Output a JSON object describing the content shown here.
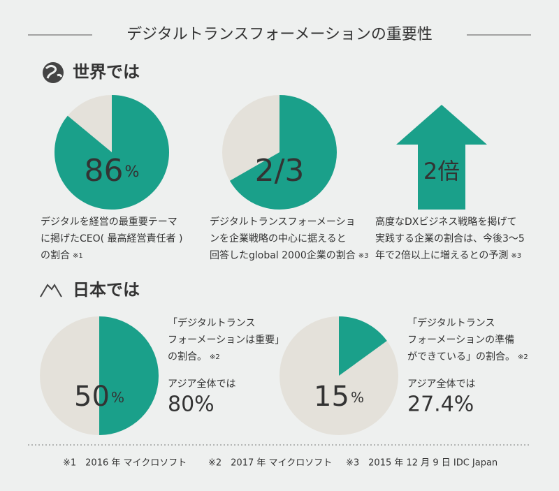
{
  "title": "デジタルトランスフォーメーションの重要性",
  "world": {
    "heading": "世界では",
    "items": [
      {
        "kind": "pie",
        "value": 86,
        "big": "86",
        "unit": "%",
        "caption": [
          "デジタルを経営の最重要テーマ",
          "に掲げたCEO( 最高経営責任者 )",
          "の割合"
        ],
        "note": "※1"
      },
      {
        "kind": "pie",
        "value": 66.7,
        "big": "2/3",
        "caption": [
          "デジタルトランスフォーメーショ",
          "ンを企業戦略の中心に据えると",
          "回答したglobal 2000企業の割合"
        ],
        "note": "※3"
      },
      {
        "kind": "arrow",
        "big": "2倍",
        "caption": [
          "高度なDXビジネス戦略を掲げて",
          "実践する企業の割合は、今後3～5",
          "年で2倍以上に増えるとの予測"
        ],
        "note": "※3"
      }
    ]
  },
  "japan": {
    "heading": "日本では",
    "items": [
      {
        "value": 50,
        "big": "50",
        "unit": "%",
        "caption": [
          "「デジタルトランス",
          "フォーメーションは重要」",
          "の割合。"
        ],
        "note": "※2",
        "asia_label": "アジア全体では",
        "asia_value": "80%"
      },
      {
        "value": 15,
        "big": "15",
        "unit": "%",
        "caption": [
          "「デジタルトランス",
          "フォーメーションの準備",
          "ができている」の割合。"
        ],
        "note": "※2",
        "asia_label": "アジア全体では",
        "asia_value": "27.4%"
      }
    ]
  },
  "footnotes": [
    "※1　2016 年 マイクロソフト",
    "※2　2017 年 マイクロソフト",
    "※3　2015 年 12 月 9 日 IDC Japan"
  ]
}
